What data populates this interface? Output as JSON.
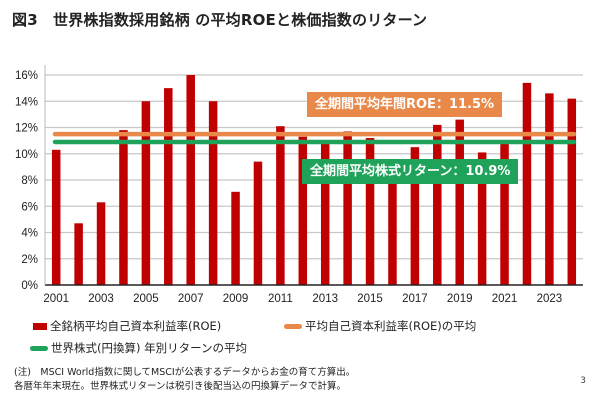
{
  "title": "図3　世界株指数採用銘柄 の平均ROEと株価指数のリターン",
  "chart_data": {
    "type": "bar",
    "title": "図3　世界株指数採用銘柄 の平均ROEと株価指数のリターン",
    "xlabel": "",
    "ylabel": "",
    "ylim": [
      0,
      16
    ],
    "yticks": [
      "0%",
      "2%",
      "4%",
      "6%",
      "8%",
      "10%",
      "12%",
      "14%",
      "16%"
    ],
    "ytick_values": [
      0,
      2,
      4,
      6,
      8,
      10,
      12,
      14,
      16
    ],
    "grid": true,
    "categories": [
      "2001",
      "2002",
      "2003",
      "2004",
      "2005",
      "2006",
      "2007",
      "2008",
      "2009",
      "2010",
      "2011",
      "2012",
      "2013",
      "2014",
      "2015",
      "2016",
      "2017",
      "2018",
      "2019",
      "2020",
      "2021",
      "2022",
      "2023",
      "2024"
    ],
    "xtick_labels": [
      "2001",
      "",
      "2003",
      "",
      "2005",
      "",
      "2007",
      "",
      "2009",
      "",
      "2011",
      "",
      "2013",
      "",
      "2015",
      "",
      "2017",
      "",
      "2019",
      "",
      "2021",
      "",
      "2023",
      ""
    ],
    "series": [
      {
        "name": "全銘柄平均自己資本利益率(ROE)",
        "type": "bar",
        "color": "#C00000",
        "values": [
          10.3,
          4.7,
          6.3,
          11.8,
          14.0,
          15.0,
          16.0,
          14.0,
          7.1,
          9.4,
          12.1,
          11.3,
          10.8,
          11.7,
          11.2,
          9.3,
          10.5,
          12.2,
          12.6,
          10.1,
          10.8,
          15.4,
          14.6,
          14.2
        ]
      },
      {
        "name": "平均自己資本利益率(ROE)の平均",
        "type": "hline",
        "color": "#E8894A",
        "value": 11.5
      },
      {
        "name": "世界株式(円換算) 年別リターンの平均",
        "type": "hline",
        "color": "#1FA25A",
        "value": 10.9
      }
    ],
    "annotations": [
      {
        "text": "全期間平均年間ROE：11.5%",
        "color": "#E8894A"
      },
      {
        "text": "全期間平均株式リターン：10.9%",
        "color": "#1FA25A"
      }
    ],
    "legend_position": "bottom"
  },
  "legend": [
    {
      "label": "全銘柄平均自己資本利益率(ROE)"
    },
    {
      "label": "平均自己資本利益率(ROE)の平均"
    },
    {
      "label": "世界株式(円換算) 年別リターンの平均"
    }
  ],
  "notes": [
    "(注)　MSCI World指数に関してMSCIが公表するデータからお金の育て方算出。",
    "各暦年年末現在。世界株式リターンは税引き後配当込の円換算データで計算。"
  ],
  "page_number": "3"
}
